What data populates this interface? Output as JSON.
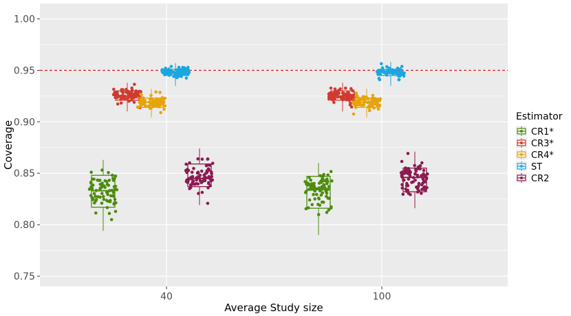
{
  "chart_data": {
    "type": "boxplot-jitter",
    "xlabel": "Average Study size",
    "ylabel": "Coverage",
    "ylim": [
      0.74,
      1.015
    ],
    "yticks": [
      0.75,
      0.8,
      0.85,
      0.9,
      0.95,
      1.0
    ],
    "ytick_labels": [
      "0.75",
      "0.80",
      "0.85",
      "0.90",
      "0.95",
      "1.00"
    ],
    "categories": [
      "40",
      "100"
    ],
    "reference_line": {
      "y": 0.95,
      "color": "#e41a1c",
      "style": "dashed"
    },
    "legend": {
      "title": "Estimator",
      "position": "right"
    },
    "grid": true,
    "series": [
      {
        "name": "CR1*",
        "color": "#4d8c0e",
        "n_points": 80,
        "boxes": [
          {
            "category": "40",
            "min": 0.794,
            "q1": 0.817,
            "median": 0.833,
            "q3": 0.848,
            "max": 0.863
          },
          {
            "category": "100",
            "min": 0.79,
            "q1": 0.816,
            "median": 0.834,
            "q3": 0.847,
            "max": 0.86
          }
        ]
      },
      {
        "name": "CR3*",
        "color": "#d13a2f",
        "n_points": 80,
        "boxes": [
          {
            "category": "40",
            "min": 0.91,
            "q1": 0.921,
            "median": 0.925,
            "q3": 0.93,
            "max": 0.938
          },
          {
            "category": "100",
            "min": 0.91,
            "q1": 0.921,
            "median": 0.925,
            "q3": 0.93,
            "max": 0.938
          }
        ]
      },
      {
        "name": "CR4*",
        "color": "#e5a50a",
        "n_points": 80,
        "boxes": [
          {
            "category": "40",
            "min": 0.904,
            "q1": 0.914,
            "median": 0.919,
            "q3": 0.923,
            "max": 0.932
          },
          {
            "category": "100",
            "min": 0.904,
            "q1": 0.914,
            "median": 0.919,
            "q3": 0.923,
            "max": 0.932
          }
        ]
      },
      {
        "name": "ST",
        "color": "#1aa7e0",
        "n_points": 80,
        "boxes": [
          {
            "category": "40",
            "min": 0.935,
            "q1": 0.945,
            "median": 0.948,
            "q3": 0.951,
            "max": 0.957
          },
          {
            "category": "100",
            "min": 0.935,
            "q1": 0.945,
            "median": 0.948,
            "q3": 0.951,
            "max": 0.958
          }
        ]
      },
      {
        "name": "CR2",
        "color": "#8b1a4f",
        "n_points": 80,
        "boxes": [
          {
            "category": "40",
            "min": 0.819,
            "q1": 0.837,
            "median": 0.845,
            "q3": 0.859,
            "max": 0.874
          },
          {
            "category": "100",
            "min": 0.816,
            "q1": 0.832,
            "median": 0.846,
            "q3": 0.855,
            "max": 0.871
          }
        ]
      }
    ]
  }
}
